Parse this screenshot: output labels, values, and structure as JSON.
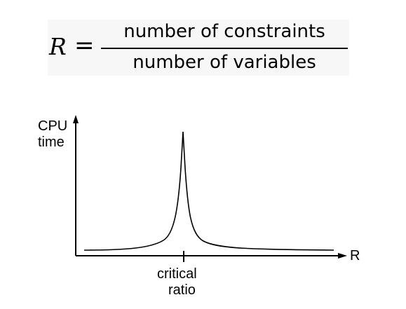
{
  "formula": {
    "lhs": "R",
    "equals": "=",
    "numerator": "number of constraints",
    "denominator": "number of variables"
  },
  "diagram": {
    "y_axis_label_line1": "CPU",
    "y_axis_label_line2": "time",
    "x_axis_label": "R",
    "tick_label_line1": "critical",
    "tick_label_line2": "ratio"
  }
}
